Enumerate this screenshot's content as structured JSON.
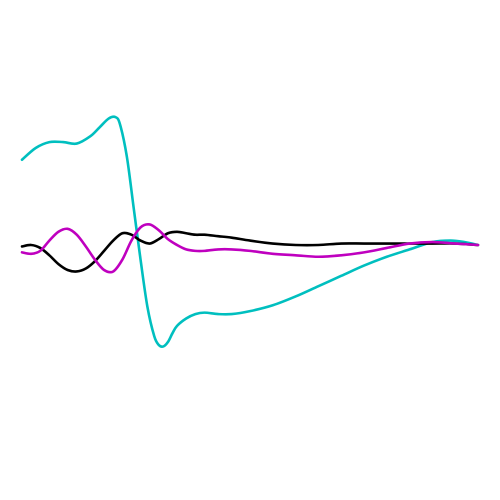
{
  "chart_data": {
    "type": "line",
    "grid": false,
    "axes_visible": false,
    "legend": "none",
    "xlim": [
      0,
      1
    ],
    "ylim": [
      -1,
      1
    ],
    "series": [
      {
        "color": "#00bfbf",
        "x": [
          0,
          0.03,
          0.06,
          0.09,
          0.12,
          0.15,
          0.17,
          0.19,
          0.205,
          0.215,
          0.23,
          0.245,
          0.26,
          0.275,
          0.29,
          0.3,
          0.31,
          0.32,
          0.33,
          0.34,
          0.36,
          0.38,
          0.4,
          0.43,
          0.46,
          0.5,
          0.55,
          0.6,
          0.65,
          0.7,
          0.75,
          0.8,
          0.85,
          0.9,
          0.94,
          0.97,
          1.0
        ],
        "y": [
          0.58,
          0.66,
          0.7,
          0.7,
          0.69,
          0.74,
          0.8,
          0.86,
          0.87,
          0.82,
          0.6,
          0.25,
          -0.1,
          -0.42,
          -0.62,
          -0.68,
          -0.69,
          -0.66,
          -0.6,
          -0.55,
          -0.5,
          -0.47,
          -0.46,
          -0.47,
          -0.47,
          -0.45,
          -0.41,
          -0.35,
          -0.28,
          -0.21,
          -0.14,
          -0.08,
          -0.03,
          0.02,
          0.03,
          0.02,
          0.0
        ]
      },
      {
        "color": "#000000",
        "x": [
          0,
          0.02,
          0.04,
          0.06,
          0.08,
          0.1,
          0.12,
          0.14,
          0.16,
          0.18,
          0.2,
          0.22,
          0.24,
          0.26,
          0.28,
          0.3,
          0.32,
          0.34,
          0.36,
          0.38,
          0.4,
          0.43,
          0.46,
          0.5,
          0.55,
          0.6,
          0.65,
          0.7,
          0.75,
          0.8,
          0.85,
          0.9,
          0.95,
          1.0
        ],
        "y": [
          -0.01,
          0.0,
          -0.02,
          -0.07,
          -0.13,
          -0.17,
          -0.18,
          -0.16,
          -0.11,
          -0.04,
          0.03,
          0.08,
          0.07,
          0.03,
          0.01,
          0.04,
          0.08,
          0.09,
          0.08,
          0.07,
          0.07,
          0.06,
          0.05,
          0.03,
          0.01,
          -0.0,
          -0.0,
          0.01,
          0.01,
          0.01,
          0.01,
          0.01,
          0.01,
          0.0
        ]
      },
      {
        "color": "#bf00bf",
        "x": [
          0,
          0.02,
          0.04,
          0.06,
          0.08,
          0.1,
          0.12,
          0.14,
          0.16,
          0.18,
          0.2,
          0.22,
          0.24,
          0.26,
          0.28,
          0.3,
          0.32,
          0.34,
          0.36,
          0.38,
          0.4,
          0.43,
          0.46,
          0.5,
          0.55,
          0.6,
          0.65,
          0.7,
          0.75,
          0.8,
          0.85,
          0.9,
          0.95,
          1.0
        ],
        "y": [
          -0.05,
          -0.06,
          -0.04,
          0.03,
          0.09,
          0.11,
          0.07,
          -0.01,
          -0.1,
          -0.17,
          -0.18,
          -0.1,
          0.03,
          0.12,
          0.14,
          0.1,
          0.04,
          -0.0,
          -0.03,
          -0.04,
          -0.04,
          -0.03,
          -0.03,
          -0.04,
          -0.06,
          -0.07,
          -0.08,
          -0.07,
          -0.05,
          -0.02,
          0.01,
          0.02,
          0.01,
          0.0
        ]
      }
    ]
  }
}
